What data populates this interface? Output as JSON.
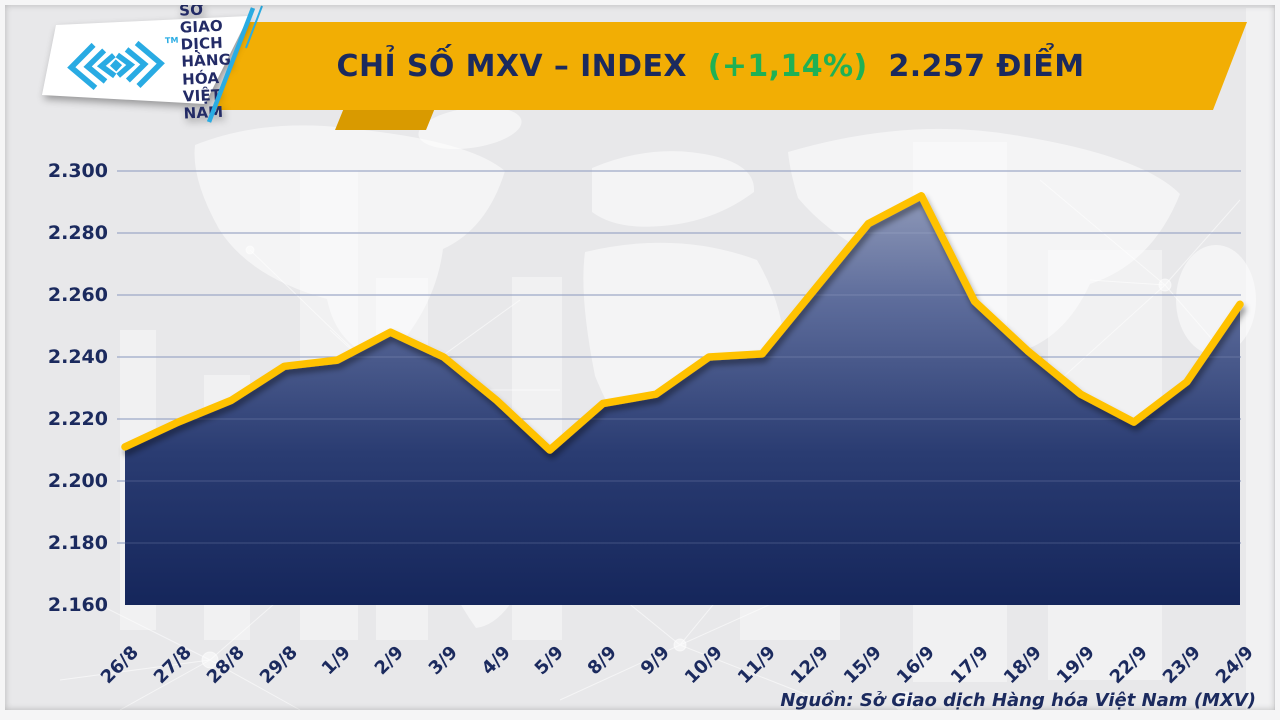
{
  "header": {
    "logo": {
      "org_name_lines": "SỞ GIAO DỊCH\nHÀNG HÓA\nVIỆT NAM",
      "trademark": "TM"
    },
    "title": {
      "main": "CHỈ SỐ MXV – INDEX",
      "change": "(+1,14%)",
      "value": "2.257 ĐIỂM"
    }
  },
  "footer": {
    "source": "Nguồn: Sở Giao dịch Hàng hóa Việt Nam (MXV)"
  },
  "colors": {
    "banner": "#f2ae04",
    "amber_dark": "#d99a00",
    "navy": "#1b2a5e",
    "green": "#1fb155",
    "cyan": "#2aace3",
    "line": "#ffc200",
    "area_top": "#9aa3bf",
    "area_mid1": "#5d6c9b",
    "area_mid2": "#2a3c72",
    "area_bottom": "#15265b",
    "gridline": "#94a0c0",
    "background": "#e8e8ea"
  },
  "chart_data": {
    "type": "area",
    "title": "Chỉ số MXV-Index (điểm)",
    "categories": [
      "26/8",
      "27/8",
      "28/8",
      "29/8",
      "1/9",
      "2/9",
      "3/9",
      "4/9",
      "5/9",
      "8/9",
      "9/9",
      "10/9",
      "11/9",
      "12/9",
      "15/9",
      "16/9",
      "17/9",
      "18/9",
      "19/9",
      "22/9",
      "23/9",
      "24/9"
    ],
    "values": [
      2211,
      2219,
      2226,
      2237,
      2239,
      2248,
      2240,
      2226,
      2210,
      2225,
      2228,
      2240,
      2241,
      2262,
      2283,
      2292,
      2258,
      2242,
      2228,
      2219,
      2232,
      2257
    ],
    "unit": "điểm",
    "ylim": [
      2160,
      2300
    ],
    "y_tick_values": [
      2300,
      2280,
      2260,
      2240,
      2220,
      2200,
      2180,
      2160
    ],
    "y_tick_labels": [
      "2.300",
      "2.280",
      "2.260",
      "2.240",
      "2.220",
      "2.200",
      "2.180",
      "2.160"
    ],
    "xlabel": "",
    "ylabel": "",
    "grid": "horizontal-only",
    "legend": "none",
    "last_point_label": "2.257",
    "change_percent": "+1,14%"
  }
}
